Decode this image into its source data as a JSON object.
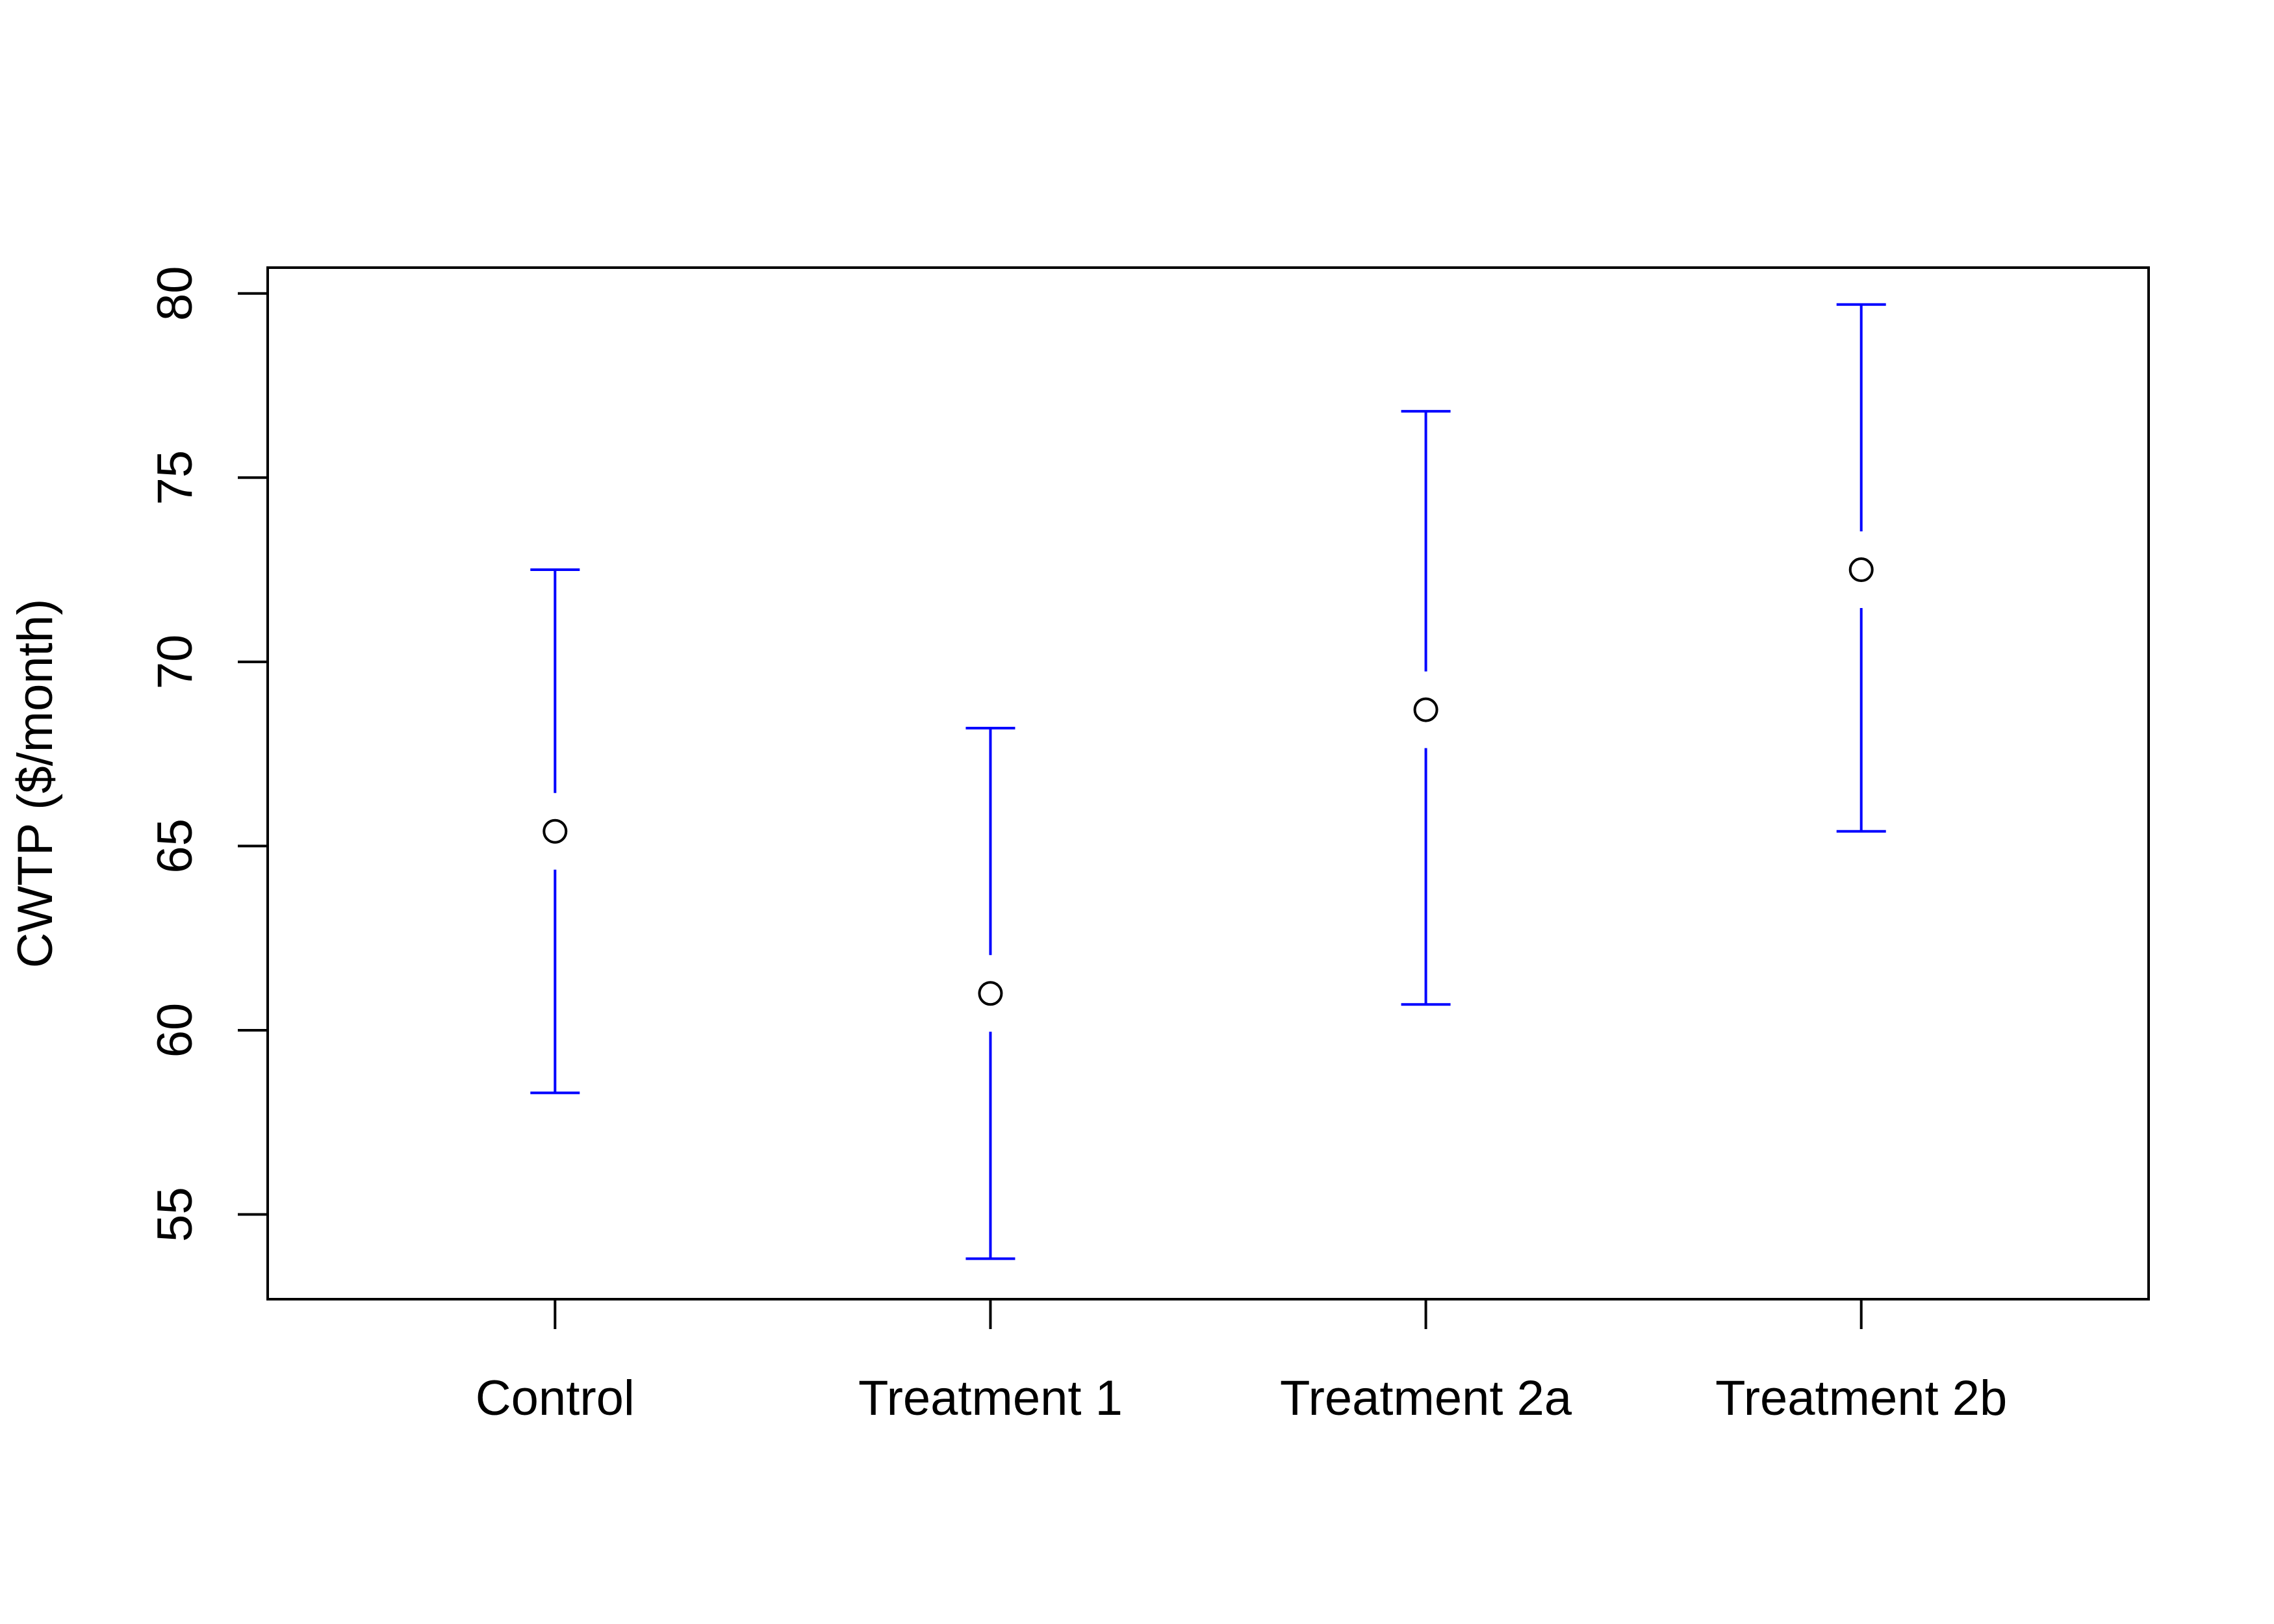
{
  "chart_data": {
    "type": "scatter",
    "title": "",
    "xlabel": "",
    "ylabel": "CWTP ($/month)",
    "categories": [
      "Control",
      "Treatment 1",
      "Treatment 2a",
      "Treatment 2b"
    ],
    "series": [
      {
        "points": [
          {
            "category": "Control",
            "estimate": 65.4,
            "lower": 58.3,
            "upper": 72.5
          },
          {
            "category": "Treatment 1",
            "estimate": 61.0,
            "lower": 53.8,
            "upper": 68.2
          },
          {
            "category": "Treatment 2a",
            "estimate": 68.7,
            "lower": 60.7,
            "upper": 76.8
          },
          {
            "category": "Treatment 2b",
            "estimate": 72.5,
            "lower": 65.4,
            "upper": 79.7
          }
        ]
      }
    ],
    "y_ticks": [
      55,
      60,
      65,
      70,
      75,
      80
    ],
    "ylim": [
      52.7,
      80.7
    ],
    "x_range": [
      0.34,
      4.66
    ],
    "grid": false,
    "legend": "none",
    "colors": {
      "error_bar": "#0000ff",
      "marker": "#000000",
      "axis": "#000000"
    }
  }
}
